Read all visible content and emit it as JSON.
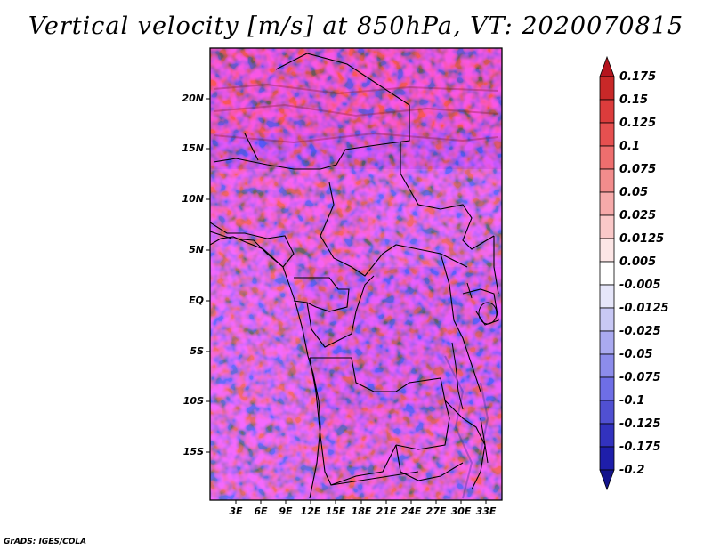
{
  "title": "Vertical velocity [m/s] at 850hPa, VT: 2020070815",
  "credit": "GrADS: IGES/COLA",
  "axes": {
    "lat_labels": [
      "20N",
      "15N",
      "10N",
      "5N",
      "EQ",
      "5S",
      "10S",
      "15S"
    ],
    "lon_labels": [
      "3E",
      "6E",
      "9E",
      "12E",
      "15E",
      "18E",
      "21E",
      "24E",
      "27E",
      "30E",
      "33E"
    ]
  },
  "colorbar": {
    "labels": [
      "0.175",
      "0.15",
      "0.125",
      "0.1",
      "0.075",
      "0.05",
      "0.025",
      "0.0125",
      "0.005",
      "-0.005",
      "-0.0125",
      "-0.025",
      "-0.05",
      "-0.075",
      "-0.1",
      "-0.125",
      "-0.175",
      "-0.2"
    ],
    "colors": [
      "#b4141e",
      "#c82828",
      "#dc3c3c",
      "#e65050",
      "#ee6e6e",
      "#f28c8c",
      "#f6aaaa",
      "#fac8c8",
      "#fde6e6",
      "#ffffff",
      "#e6e6fa",
      "#c8c8f5",
      "#aaaaf0",
      "#8c8ceb",
      "#6e6ee6",
      "#5050d2",
      "#3232be",
      "#1e1eaa",
      "#14148c"
    ]
  }
}
